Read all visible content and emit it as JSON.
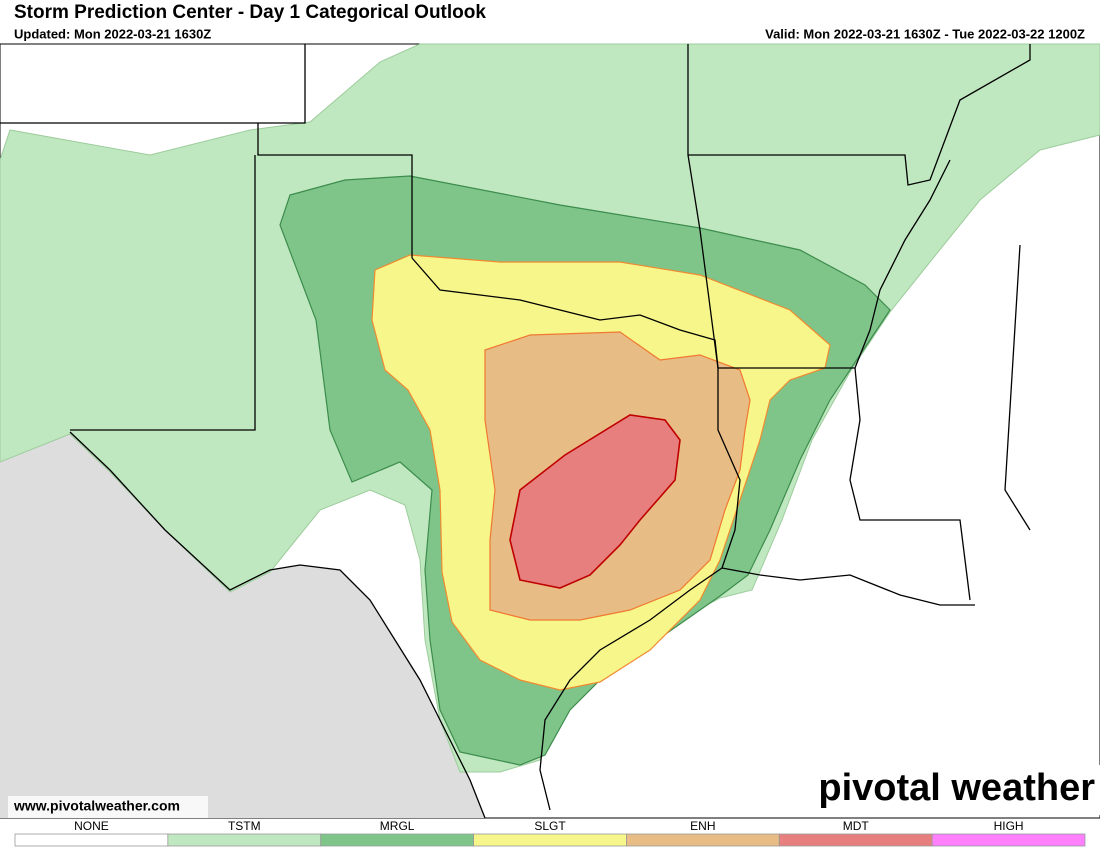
{
  "header": {
    "title": "Storm Prediction Center - Day 1 Categorical Outlook",
    "updated": "Updated: Mon 2022-03-21 1630Z",
    "valid": "Valid: Mon 2022-03-21 1630Z - Tue 2022-03-22 1200Z"
  },
  "map": {
    "website": "www.pivotalweather.com",
    "logo": "pivotal weather"
  },
  "legend": [
    {
      "label": "NONE",
      "color": "#ffffff"
    },
    {
      "label": "TSTM",
      "color": "#c0e8c0"
    },
    {
      "label": "MRGL",
      "color": "#7fc58a"
    },
    {
      "label": "SLGT",
      "color": "#f6f68a"
    },
    {
      "label": "ENH",
      "color": "#e8bd85"
    },
    {
      "label": "MDT",
      "color": "#e77f7f"
    },
    {
      "label": "HIGH",
      "color": "#ff80ff"
    }
  ]
}
